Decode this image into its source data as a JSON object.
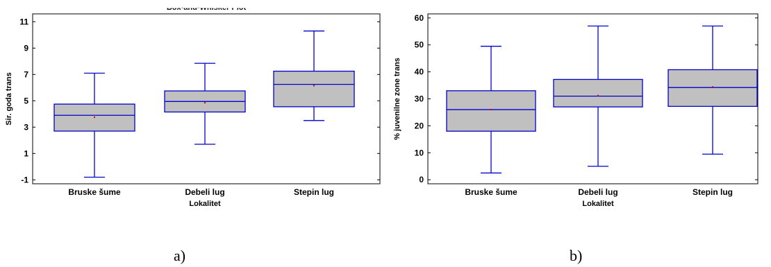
{
  "captions": {
    "a": "a)",
    "b": "b)"
  },
  "chart_data": [
    {
      "type": "box",
      "title": "Box-and-Whisker Plot",
      "xlabel": "Lokalitet",
      "ylabel": "Sir. goda trans",
      "categories": [
        "Bruske šume",
        "Debeli lug",
        "Stepin lug"
      ],
      "ylim": [
        -1.3,
        11.6
      ],
      "yticks": [
        -1,
        1,
        3,
        5,
        7,
        9,
        11
      ],
      "boxes": [
        {
          "min": -0.8,
          "q1": 2.7,
          "median": 3.9,
          "q3": 4.75,
          "max": 7.1,
          "mean": 3.75
        },
        {
          "min": 1.7,
          "q1": 4.15,
          "median": 4.95,
          "q3": 5.75,
          "max": 7.85,
          "mean": 4.85
        },
        {
          "min": 3.5,
          "q1": 4.55,
          "median": 6.25,
          "q3": 7.25,
          "max": 10.3,
          "mean": 6.15
        }
      ],
      "colors": {
        "box_fill": "#c0c0c0",
        "lines": "#0000cc",
        "mean_marker": "#cc0000"
      }
    },
    {
      "type": "box",
      "xlabel": "Lokalitet",
      "ylabel": "% juvenilne zone trans",
      "categories": [
        "Bruske šume",
        "Debeli lug",
        "Stepin lug"
      ],
      "ylim": [
        -1.5,
        61.5
      ],
      "yticks": [
        0,
        10,
        20,
        30,
        40,
        50,
        60
      ],
      "boxes": [
        {
          "min": 2.5,
          "q1": 18,
          "median": 26,
          "q3": 33,
          "max": 49.5,
          "mean": 26
        },
        {
          "min": 5,
          "q1": 27,
          "median": 31,
          "q3": 37.2,
          "max": 57,
          "mean": 31.2
        },
        {
          "min": 9.5,
          "q1": 27.2,
          "median": 34.2,
          "q3": 40.8,
          "max": 57,
          "mean": 34.4
        }
      ],
      "colors": {
        "box_fill": "#c0c0c0",
        "lines": "#0000cc",
        "mean_marker": "#cc0000"
      }
    }
  ]
}
